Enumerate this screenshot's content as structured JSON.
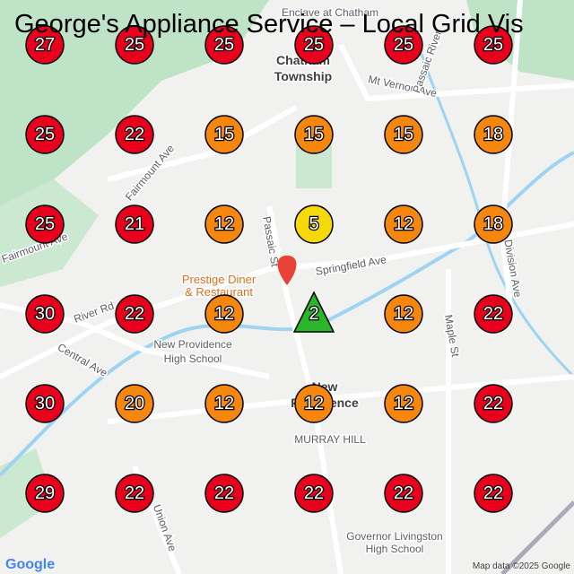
{
  "title": "George's Appliance Service – Local Grid Vis",
  "grid": [
    [
      {
        "value": 27,
        "color": "#e8001c"
      },
      {
        "value": 25,
        "color": "#e8001c"
      },
      {
        "value": 25,
        "color": "#e8001c"
      },
      {
        "value": 25,
        "color": "#e8001c"
      },
      {
        "value": 25,
        "color": "#e8001c"
      },
      {
        "value": 25,
        "color": "#e8001c"
      }
    ],
    [
      {
        "value": 25,
        "color": "#e8001c"
      },
      {
        "value": 22,
        "color": "#e8001c"
      },
      {
        "value": 15,
        "color": "#f5870f"
      },
      {
        "value": 15,
        "color": "#f5870f"
      },
      {
        "value": 15,
        "color": "#f5870f"
      },
      {
        "value": 18,
        "color": "#f5870f"
      }
    ],
    [
      {
        "value": 25,
        "color": "#e8001c"
      },
      {
        "value": 21,
        "color": "#e8001c"
      },
      {
        "value": 12,
        "color": "#f5870f"
      },
      {
        "value": 5,
        "color": "#f5d90a"
      },
      {
        "value": 12,
        "color": "#f5870f"
      },
      {
        "value": 18,
        "color": "#f5870f"
      }
    ],
    [
      {
        "value": 30,
        "color": "#e8001c"
      },
      {
        "value": 22,
        "color": "#e8001c"
      },
      {
        "value": 12,
        "color": "#f5870f"
      },
      {
        "value": 2,
        "color": "#2bb52b",
        "shape": "triangle"
      },
      {
        "value": 12,
        "color": "#f5870f"
      },
      {
        "value": 22,
        "color": "#e8001c"
      }
    ],
    [
      {
        "value": 30,
        "color": "#e8001c"
      },
      {
        "value": 20,
        "color": "#f5870f"
      },
      {
        "value": 12,
        "color": "#f5870f"
      },
      {
        "value": 12,
        "color": "#f5870f"
      },
      {
        "value": 12,
        "color": "#f5870f"
      },
      {
        "value": 22,
        "color": "#e8001c"
      }
    ],
    [
      {
        "value": 29,
        "color": "#e8001c"
      },
      {
        "value": 22,
        "color": "#e8001c"
      },
      {
        "value": 22,
        "color": "#e8001c"
      },
      {
        "value": 22,
        "color": "#e8001c"
      },
      {
        "value": 22,
        "color": "#e8001c"
      },
      {
        "value": 22,
        "color": "#e8001c"
      }
    ]
  ],
  "map_labels": [
    "Enclave at Chatham",
    "Chatham",
    "Township",
    "Mt Vernon Ave",
    "Fairmount Ave",
    "Fairmount Ave",
    "Springfield Ave",
    "Prestige Diner",
    "& Restaurant",
    "River Rd",
    "Central Ave",
    "New Providence",
    "High School",
    "New",
    "Providence",
    "MURRAY HILL",
    "Passaic St",
    "Maple St",
    "Division Ave",
    "Union Ave",
    "Governor Livingston",
    "High School",
    "Passaic River"
  ],
  "attribution": "Map data ©2025 Google",
  "logo": "Google"
}
